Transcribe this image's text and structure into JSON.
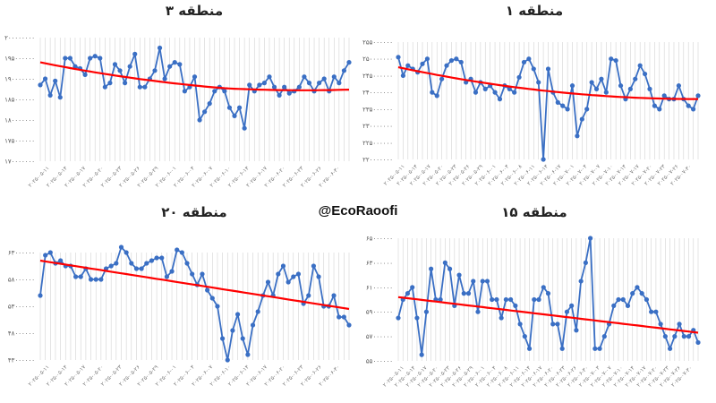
{
  "watermark": "@EcoRaoofi",
  "colors": {
    "series": "#3a6fc4",
    "trend": "#ff0000",
    "grid": "#d3d3d3",
    "marker": "#3a6fc4"
  },
  "chart_data": [
    {
      "type": "line",
      "title": "منطقه ۳",
      "ytick_labels": [
        "۲۰۰۰۰۰۰۰۰",
        "۱۹۵۰۰۰۰۰۰",
        "۱۹۰۰۰۰۰۰۰",
        "۱۸۵۰۰۰۰۰۰",
        "۱۸۰۰۰۰۰۰۰",
        "۱۷۵۰۰۰۰۰۰",
        "۱۷۰۰۰۰۰۰۰"
      ],
      "ylim": [
        170000000,
        200000000
      ],
      "xtick_labels": [
        "۲۰۲۵-۰۵-۱۱",
        "۲۰۲۵-۰۵-۱۴",
        "۲۰۲۵-۰۵-۱۷",
        "۲۰۲۵-۰۵-۲۰",
        "۲۰۲۵-۰۵-۲۳",
        "۲۰۲۵-۰۵-۲۶",
        "۲۰۲۵-۰۵-۲۹",
        "۲۰۲۵-۰۶-۰۱",
        "۲۰۲۵-۰۶-۰۴",
        "۲۰۲۵-۰۶-۰۷",
        "۲۰۲۵-۰۶-۱۰",
        "۲۰۲۵-۰۶-۱۴",
        "۲۰۲۵-۰۶-۱۷",
        "۲۰۲۵-۰۶-۲۰",
        "۲۰۲۵-۰۶-۲۳",
        "۲۰۲۵-۰۶-۲۶",
        "۲۰۲۵-۰۶-۳۰"
      ],
      "values": [
        188.5,
        190,
        186,
        189.5,
        185.5,
        195,
        195,
        193,
        192.5,
        191,
        195,
        195.5,
        195,
        188,
        189,
        193.5,
        192,
        189,
        193,
        196,
        188,
        188,
        190,
        192,
        197.5,
        190,
        193,
        194,
        193.5,
        187,
        188,
        190.5,
        180,
        182,
        184,
        187,
        188,
        187,
        183,
        181,
        183,
        178,
        188.5,
        187,
        188.5,
        189,
        190.5,
        188,
        186,
        188,
        186.5,
        187,
        188,
        190.5,
        189,
        187,
        189,
        190,
        187,
        190.5,
        189,
        192,
        194
      ],
      "trend": [
        194,
        186.5
      ]
    },
    {
      "type": "line",
      "title": "منطقه ۱",
      "ytick_labels": [
        "۲۵۵۰۰۰۰۰۰",
        "۲۵۰۰۰۰۰۰۰",
        "۲۴۵۰۰۰۰۰۰",
        "۲۴۰۰۰۰۰۰۰",
        "۲۳۵۰۰۰۰۰۰",
        "۲۳۰۰۰۰۰۰۰",
        "۲۲۵۰۰۰۰۰۰",
        "۲۲۰۰۰۰۰۰۰"
      ],
      "ylim": [
        220000000,
        255000000
      ],
      "xtick_labels": [
        "۲۰۲۵-۰۵-۱۱",
        "۲۰۲۵-۰۵-۱۴",
        "۲۰۲۵-۰۵-۱۷",
        "۲۰۲۵-۰۵-۲۰",
        "۲۰۲۵-۰۵-۲۳",
        "۲۰۲۵-۰۵-۲۶",
        "۲۰۲۵-۰۵-۲۹",
        "۲۰۲۵-۰۶-۰۱",
        "۲۰۲۵-۰۶-۰۴",
        "۲۰۲۵-۰۶-۰۸",
        "۲۰۲۵-۰۶-۱۱",
        "۲۰۲۵-۰۶-۱۴",
        "۲۰۲۵-۰۶-۱۷",
        "۲۰۲۵-۰۷-۰۱",
        "۲۰۲۵-۰۷-۰۴",
        "۲۰۲۵-۰۷-۰۷",
        "۲۰۲۵-۰۷-۱۰",
        "۲۰۲۵-۰۷-۱۴",
        "۲۰۲۵-۰۷-۱۷",
        "۲۰۲۵-۰۷-۲۰",
        "۲۰۲۵-۰۷-۲۳",
        "۲۰۲۵-۰۷-۲۶",
        "۲۰۲۵-۰۷-۳۰"
      ],
      "values": [
        250.5,
        245,
        248,
        247,
        246,
        248.5,
        250,
        240,
        239,
        244,
        248,
        249.5,
        250,
        249,
        243,
        244,
        240,
        243,
        241,
        242,
        240,
        238,
        242,
        241,
        240,
        244.5,
        249,
        250,
        247,
        243,
        220,
        247,
        240,
        237,
        236,
        235,
        242,
        227,
        232,
        235,
        243,
        241,
        244,
        240,
        250,
        249.5,
        242,
        238,
        241,
        244,
        248,
        245.5,
        241,
        236,
        235,
        239,
        238,
        238,
        242,
        238,
        236,
        235,
        239
      ],
      "trend": [
        247.5,
        238
      ]
    },
    {
      "type": "line",
      "title": "منطقه ۲۰",
      "ytick_labels": [
        "۶۳۰۰۰۰۰۰",
        "۵۸۰۰۰۰۰۰",
        "۵۳۰۰۰۰۰۰",
        "۴۸۰۰۰۰۰۰",
        "۴۳۰۰۰۰۰۰"
      ],
      "ylim": [
        43000000,
        63000000
      ],
      "xtick_labels": [
        "۲۰۲۵-۰۵-۱۱",
        "۲۰۲۵-۰۵-۱۴",
        "۲۰۲۵-۰۵-۱۷",
        "۲۰۲۵-۰۵-۲۰",
        "۲۰۲۵-۰۵-۲۳",
        "۲۰۲۵-۰۵-۲۶",
        "۲۰۲۵-۰۵-۲۹",
        "۲۰۲۵-۰۶-۰۱",
        "۲۰۲۵-۰۶-۰۴",
        "۲۰۲۵-۰۶-۰۷",
        "۲۰۲۵-۰۶-۱۰",
        "۲۰۲۵-۰۶-۱۴",
        "۲۰۲۵-۰۶-۱۷",
        "۲۰۲۵-۰۶-۲۰",
        "۲۰۲۵-۰۶-۲۳",
        "۲۰۲۵-۰۶-۲۶",
        "۲۰۲۵-۰۶-۳۰"
      ],
      "values": [
        55,
        62.5,
        63,
        61,
        61.5,
        60.5,
        60.5,
        58.5,
        58.5,
        60,
        58,
        58,
        58,
        60,
        60.5,
        61,
        64,
        63,
        61,
        60,
        60,
        61,
        61.5,
        62,
        62,
        58.5,
        59.5,
        63.5,
        63,
        61,
        59,
        57,
        59,
        56,
        54.5,
        53,
        47,
        43,
        48.5,
        51.5,
        47,
        44,
        49.5,
        52,
        55,
        57.5,
        55,
        59,
        60.5,
        57.5,
        58.5,
        59,
        53.5,
        55,
        60.5,
        58.5,
        53,
        53,
        55,
        51,
        51,
        49.5
      ],
      "trend": [
        61.5,
        52.5
      ]
    },
    {
      "type": "line",
      "title": "منطقه ۱۵",
      "ytick_labels": [
        "۶۵۰۰۰۰۰۰",
        "۶۳۰۰۰۰۰۰",
        "۶۱۰۰۰۰۰۰",
        "۵۹۰۰۰۰۰۰",
        "۵۷۰۰۰۰۰۰",
        "۵۵۰۰۰۰۰۰"
      ],
      "ylim": [
        55000000,
        65000000
      ],
      "xtick_labels": [
        "۲۰۲۵-۰۵-۱۱",
        "۲۰۲۵-۰۵-۱۴",
        "۲۰۲۵-۰۵-۱۷",
        "۲۰۲۵-۰۵-۲۰",
        "۲۰۲۵-۰۵-۲۳",
        "۲۰۲۵-۰۵-۲۶",
        "۲۰۲۵-۰۵-۲۹",
        "۲۰۲۵-۰۶-۰۱",
        "۲۰۲۵-۰۶-۰۴",
        "۲۰۲۵-۰۶-۰۸",
        "۲۰۲۵-۰۶-۱۱",
        "۲۰۲۵-۰۶-۱۴",
        "۲۰۲۵-۰۶-۱۷",
        "۲۰۲۵-۰۶-۲۰",
        "۲۰۲۵-۰۶-۲۳",
        "۲۰۲۵-۰۶-۲۶",
        "۲۰۲۵-۰۶-۳۰",
        "۲۰۲۵-۰۷-۰۳",
        "۲۰۲۵-۰۷-۰۷",
        "۲۰۲۵-۰۷-۱۰",
        "۲۰۲۵-۰۷-۱۴",
        "۲۰۲۵-۰۷-۱۷",
        "۲۰۲۵-۰۷-۲۰",
        "۲۰۲۵-۰۷-۲۳",
        "۲۰۲۵-۰۷-۲۶",
        "۲۰۲۵-۰۷-۳۰"
      ],
      "values": [
        58.5,
        60,
        60.5,
        61,
        58.5,
        55.5,
        59,
        62.5,
        60,
        60,
        63,
        62.5,
        59.5,
        62,
        60.5,
        60.5,
        61.5,
        59,
        61.5,
        61.5,
        60,
        60,
        58.5,
        60,
        60,
        59.5,
        58,
        57,
        56,
        60,
        60,
        61,
        60.5,
        58,
        58,
        56,
        59,
        59.5,
        57.5,
        61.5,
        63,
        65,
        56,
        56,
        57,
        58,
        59.5,
        60,
        60,
        59.5,
        60.5,
        61,
        60.5,
        60,
        59,
        59,
        58,
        57,
        56,
        57,
        58,
        57,
        57,
        57.5,
        56.5
      ],
      "trend": [
        60.2,
        57.3
      ]
    }
  ]
}
